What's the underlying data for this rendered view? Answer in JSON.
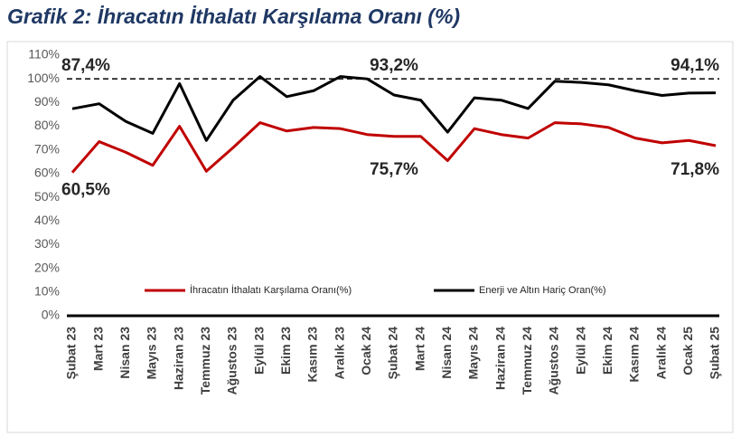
{
  "chart_data": {
    "type": "line",
    "title": "Grafik 2: İhracatın İthalatı Karşılama Oranı (%)",
    "categories": [
      "Şubat 23",
      "Mart 23",
      "Nisan 23",
      "Mayıs 23",
      "Haziran 23",
      "Temmuz 23",
      "Ağustos 23",
      "Eylül 23",
      "Ekim 23",
      "Kasım 23",
      "Aralık 23",
      "Ocak 24",
      "Şubat 24",
      "Mart 24",
      "Nisan 24",
      "Mayıs 24",
      "Haziran 24",
      "Temmuz 24",
      "Ağustos 24",
      "Eylül 24",
      "Ekim 24",
      "Kasım 24",
      "Aralık 24",
      "Ocak 25",
      "Şubat 25"
    ],
    "series": [
      {
        "name": "İhracatın İthalatı Karşılama Oranı(%)",
        "color": "#c00000",
        "values": [
          60.5,
          73.5,
          69,
          63.5,
          80,
          61,
          71,
          81.5,
          78,
          79.5,
          79,
          76.5,
          75.7,
          75.7,
          65.5,
          79,
          76.5,
          75,
          81.5,
          81,
          79.5,
          75,
          73,
          74,
          71.8
        ],
        "value_labels": [
          "60,5%",
          null,
          null,
          null,
          null,
          null,
          null,
          null,
          null,
          null,
          null,
          null,
          "75,7%",
          null,
          null,
          null,
          null,
          null,
          null,
          null,
          null,
          null,
          null,
          null,
          "71,8%"
        ]
      },
      {
        "name": "Enerji ve Altın Hariç Oran(%)",
        "color": "#000000",
        "values": [
          87.4,
          89.5,
          82,
          77,
          98,
          74,
          91,
          101,
          92.5,
          95,
          101,
          100,
          93.2,
          91,
          77.5,
          92,
          91,
          87.5,
          99,
          98.5,
          97.5,
          95,
          93,
          94,
          94.1
        ],
        "value_labels": [
          "87,4%",
          null,
          null,
          null,
          null,
          null,
          null,
          null,
          null,
          null,
          null,
          null,
          "93,2%",
          null,
          null,
          null,
          null,
          null,
          null,
          null,
          null,
          null,
          null,
          null,
          "94,1%"
        ]
      }
    ],
    "ylim": [
      0,
      110
    ],
    "yticks": [
      {
        "value": 0,
        "label": "0%"
      },
      {
        "value": 10,
        "label": "10%"
      },
      {
        "value": 20,
        "label": "20%"
      },
      {
        "value": 30,
        "label": "30%"
      },
      {
        "value": 40,
        "label": "40%"
      },
      {
        "value": 50,
        "label": "50%"
      },
      {
        "value": 60,
        "label": "60%"
      },
      {
        "value": 70,
        "label": "70%"
      },
      {
        "value": 80,
        "label": "80%"
      },
      {
        "value": 90,
        "label": "90%"
      },
      {
        "value": 100,
        "label": "100%"
      },
      {
        "value": 110,
        "label": "110%"
      }
    ],
    "reference_line": 100,
    "grid": false
  }
}
